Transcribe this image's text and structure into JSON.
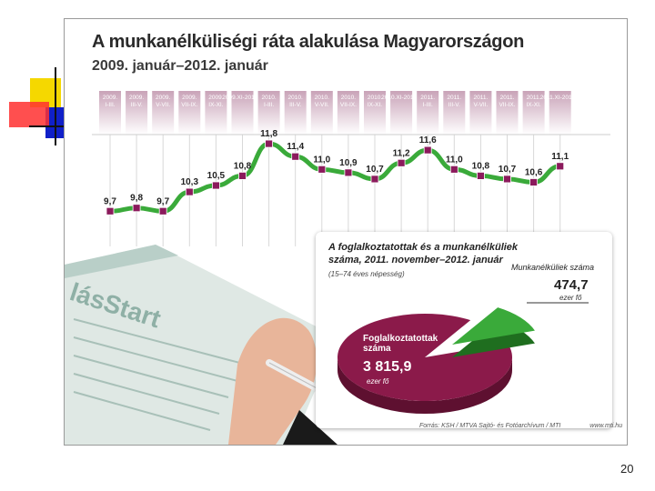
{
  "slide": {
    "page_number": "20",
    "source": "Forrás: KSH / MTVA Sajtó- és Fotóarchívum / MTI",
    "site": "www.mti.hu"
  },
  "colors": {
    "line": "#3aaa3a",
    "marker": "#8b1a5c",
    "header_band": "#c9a3b8",
    "pie_employed": "#8b1a4a",
    "pie_unemployed": "#3aaa3a"
  },
  "chart_data": [
    {
      "type": "line",
      "title": "A munkanélküliségi ráta alakulása Magyarországon",
      "subtitle": "2009. január–2012. január",
      "categories": [
        "2009. I-III.",
        "2009. III-V.",
        "2009. V-VII.",
        "2009. VII-IX.",
        "2009. IX-XI.",
        "2009.XI-2010.I.",
        "2010. I-III.",
        "2010. III-V.",
        "2010. V-VII.",
        "2010. VII-IX.",
        "2010. IX-XI.",
        "2010.XI-2011.I.",
        "2011. I-III.",
        "2011. III-V.",
        "2011. V-VII.",
        "2011. VII-IX.",
        "2011. IX-XI.",
        "2011.XI-2012.I."
      ],
      "values": [
        9.7,
        9.8,
        9.7,
        10.3,
        10.5,
        10.8,
        11.8,
        11.4,
        11.0,
        10.9,
        10.7,
        11.2,
        11.6,
        11.0,
        10.8,
        10.7,
        10.6,
        11.1
      ],
      "labels": [
        "9,7",
        "9,8",
        "9,7",
        "10,3",
        "10,5",
        "10,8",
        "11,8",
        "11,4",
        "11,0",
        "10,9",
        "10,7",
        "11,2",
        "11,6",
        "11,0",
        "10,8",
        "10,7",
        "10,6",
        "11,1"
      ],
      "ylim": [
        9.0,
        12.0
      ],
      "grid": true
    },
    {
      "type": "pie",
      "title": "A foglalkoztatottak és a munkanélküliek száma, 2011. november–2012. január",
      "note": "(15–74 éves népesség)",
      "slices": [
        {
          "name": "Foglalkoztatottak száma",
          "value": 3815.9,
          "label": "3 815,9",
          "unit": "ezer fő"
        },
        {
          "name": "Munkanélküliek száma",
          "value": 474.7,
          "label": "474,7",
          "unit": "ezer fő"
        }
      ]
    }
  ]
}
